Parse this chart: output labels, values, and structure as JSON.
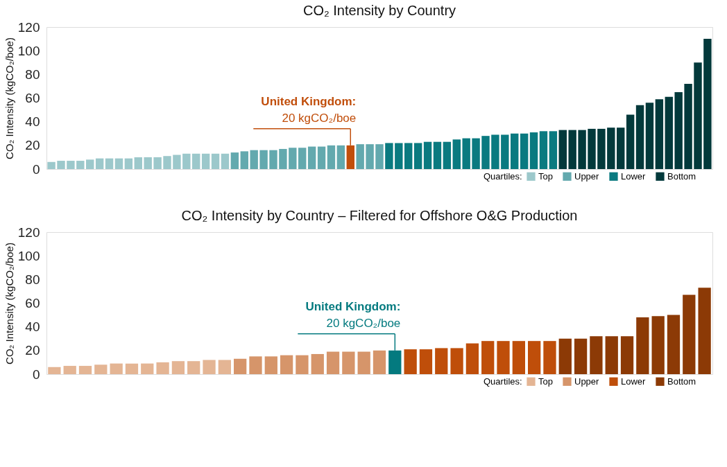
{
  "chart_data": [
    {
      "type": "bar",
      "title": "CO₂ Intensity by Country",
      "ylabel": "CO₂ Intensity (kgCO₂/boe)",
      "legend_title": "Quartiles:",
      "categories": [
        null,
        null,
        null,
        null,
        null,
        null,
        null,
        null,
        null,
        null,
        null,
        null,
        null,
        null,
        null,
        null,
        null,
        null,
        null,
        null,
        null,
        null,
        null,
        null,
        null,
        null,
        null,
        null,
        null,
        null,
        null,
        null,
        null,
        null,
        null,
        null,
        null,
        null,
        null,
        null,
        null,
        null,
        null,
        null,
        null,
        null,
        null,
        null,
        null,
        null,
        null,
        null,
        null,
        null,
        null,
        null,
        null,
        null,
        null,
        null,
        null,
        null,
        null,
        null,
        null,
        null,
        null,
        null,
        null
      ],
      "series": [
        {
          "name": "Top",
          "color": "#9cc8cb",
          "values": [
            6,
            7,
            7,
            7,
            8,
            9,
            9,
            9,
            9,
            10,
            10,
            10,
            11,
            12,
            13,
            13,
            13,
            13,
            13,
            null,
            null,
            null,
            null,
            null,
            null,
            null,
            null,
            null,
            null,
            null,
            null,
            null,
            null,
            null,
            null,
            null,
            null,
            null,
            null,
            null,
            null,
            null,
            null,
            null,
            null,
            null,
            null,
            null,
            null,
            null,
            null,
            null,
            null,
            null,
            null,
            null,
            null,
            null,
            null,
            null,
            null,
            null,
            null,
            null,
            null,
            null,
            null,
            null,
            null
          ]
        },
        {
          "name": "Upper",
          "color": "#63a9ae",
          "values": [
            null,
            null,
            null,
            null,
            null,
            null,
            null,
            null,
            null,
            null,
            null,
            null,
            null,
            null,
            null,
            null,
            null,
            null,
            null,
            14,
            15,
            16,
            16,
            16,
            17,
            18,
            18,
            19,
            19,
            20,
            20,
            null,
            21,
            21,
            21,
            null,
            null,
            null,
            null,
            null,
            null,
            null,
            null,
            null,
            null,
            null,
            null,
            null,
            null,
            null,
            null,
            null,
            null,
            null,
            null,
            null,
            null,
            null,
            null,
            null,
            null,
            null,
            null,
            null,
            null,
            null,
            null,
            null,
            null
          ]
        },
        {
          "name": "Lower",
          "color": "#0a7a80",
          "values": [
            null,
            null,
            null,
            null,
            null,
            null,
            null,
            null,
            null,
            null,
            null,
            null,
            null,
            null,
            null,
            null,
            null,
            null,
            null,
            null,
            null,
            null,
            null,
            null,
            null,
            null,
            null,
            null,
            null,
            null,
            null,
            null,
            null,
            null,
            null,
            22,
            22,
            22,
            22,
            23,
            23,
            23,
            25,
            26,
            26,
            28,
            29,
            29,
            30,
            30,
            31,
            32,
            32,
            null,
            null,
            null,
            null,
            null,
            null,
            null,
            null,
            null,
            null,
            null,
            null,
            null,
            null,
            null,
            null
          ]
        },
        {
          "name": "Bottom",
          "color": "#03393b",
          "values": [
            null,
            null,
            null,
            null,
            null,
            null,
            null,
            null,
            null,
            null,
            null,
            null,
            null,
            null,
            null,
            null,
            null,
            null,
            null,
            null,
            null,
            null,
            null,
            null,
            null,
            null,
            null,
            null,
            null,
            null,
            null,
            null,
            null,
            null,
            null,
            null,
            null,
            null,
            null,
            null,
            null,
            null,
            null,
            null,
            null,
            null,
            null,
            null,
            null,
            null,
            null,
            null,
            null,
            33,
            33,
            33,
            34,
            34,
            35,
            35,
            46,
            54,
            56,
            59,
            61,
            65,
            72,
            90,
            110
          ]
        },
        {
          "color": "#c14e0b",
          "values": [
            null,
            null,
            null,
            null,
            null,
            null,
            null,
            null,
            null,
            null,
            null,
            null,
            null,
            null,
            null,
            null,
            null,
            null,
            null,
            null,
            null,
            null,
            null,
            null,
            null,
            null,
            null,
            null,
            null,
            null,
            null,
            20,
            null,
            null,
            null,
            null,
            null,
            null,
            null,
            null,
            null,
            null,
            null,
            null,
            null,
            null,
            null,
            null,
            null,
            null,
            null,
            null,
            null,
            null,
            null,
            null,
            null,
            null,
            null,
            null,
            null,
            null,
            null,
            null,
            null,
            null,
            null,
            null,
            null
          ]
        }
      ],
      "annotations": [
        "United Kingdom:",
        "20 kgCO₂/boe"
      ],
      "ylim": [
        0,
        120
      ],
      "yticks": [
        0,
        20,
        40,
        60,
        80,
        100,
        120
      ],
      "grid": false,
      "legend": "bottom right",
      "tick_labels": "y",
      "stacked": true
    },
    {
      "type": "bar",
      "title": "CO₂ Intensity by Country – Filtered for Offshore O&G Production",
      "ylabel": "CO₂ Intensity (kgCO₂/boe)",
      "legend_title": "Quartiles:",
      "categories": [
        null,
        null,
        null,
        null,
        null,
        null,
        null,
        null,
        null,
        null,
        null,
        null,
        null,
        null,
        null,
        null,
        null,
        null,
        null,
        null,
        null,
        null,
        null,
        null,
        null,
        null,
        null,
        null,
        null,
        null,
        null,
        null,
        null,
        null,
        null,
        null,
        null,
        null,
        null,
        null,
        null,
        null,
        null
      ],
      "series": [
        {
          "name": "Top",
          "color": "#e4b594",
          "values": [
            6,
            7,
            7,
            8,
            9,
            9,
            9,
            10,
            11,
            11,
            12,
            12,
            null,
            null,
            null,
            null,
            null,
            null,
            null,
            null,
            null,
            null,
            null,
            null,
            null,
            null,
            null,
            null,
            null,
            null,
            null,
            null,
            null,
            null,
            null,
            null,
            null,
            null,
            null,
            null,
            null,
            null,
            null
          ]
        },
        {
          "name": "Upper",
          "color": "#d6956a",
          "values": [
            null,
            null,
            null,
            null,
            null,
            null,
            null,
            null,
            null,
            null,
            null,
            null,
            13,
            15,
            15,
            16,
            16,
            17,
            19,
            19,
            19,
            20,
            null,
            null,
            null,
            null,
            null,
            null,
            null,
            null,
            null,
            null,
            null,
            null,
            null,
            null,
            null,
            null,
            null,
            null,
            null,
            null,
            null
          ]
        },
        {
          "name": "Lower",
          "color": "#bf4e0a",
          "values": [
            null,
            null,
            null,
            null,
            null,
            null,
            null,
            null,
            null,
            null,
            null,
            null,
            null,
            null,
            null,
            null,
            null,
            null,
            null,
            null,
            null,
            null,
            null,
            21,
            21,
            22,
            22,
            26,
            28,
            28,
            28,
            28,
            28,
            null,
            null,
            null,
            null,
            null,
            null,
            null,
            null,
            null,
            null
          ]
        },
        {
          "name": "Bottom",
          "color": "#8c3a06",
          "values": [
            null,
            null,
            null,
            null,
            null,
            null,
            null,
            null,
            null,
            null,
            null,
            null,
            null,
            null,
            null,
            null,
            null,
            null,
            null,
            null,
            null,
            null,
            null,
            null,
            null,
            null,
            null,
            null,
            null,
            null,
            null,
            null,
            null,
            30,
            30,
            32,
            32,
            32,
            48,
            49,
            50,
            67,
            73
          ]
        },
        {
          "color": "#047a7f",
          "values": [
            null,
            null,
            null,
            null,
            null,
            null,
            null,
            null,
            null,
            null,
            null,
            null,
            null,
            null,
            null,
            null,
            null,
            null,
            null,
            null,
            null,
            null,
            20,
            null,
            null,
            null,
            null,
            null,
            null,
            null,
            null,
            null,
            null,
            null,
            null,
            null,
            null,
            null,
            null,
            null,
            null,
            null,
            null
          ]
        }
      ],
      "annotations": [
        "United Kingdom:",
        "20 kgCO₂/boe"
      ],
      "ylim": [
        0,
        120
      ],
      "yticks": [
        0,
        20,
        40,
        60,
        80,
        100,
        120
      ],
      "grid": false,
      "legend": "bottom right",
      "tick_labels": "y",
      "stacked": true
    }
  ]
}
